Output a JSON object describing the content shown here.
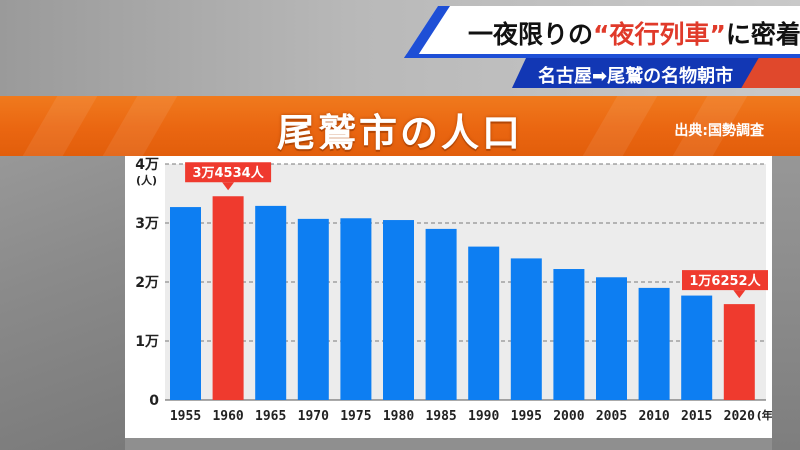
{
  "caption": {
    "headline_pre": "一夜限りの",
    "headline_highlight": "“夜行列車”",
    "headline_post": "に密着",
    "subline": "名古屋➡尾鷲の名物朝市"
  },
  "band": {
    "title": "尾鷲市の人口",
    "source": "出典:国勢調査"
  },
  "colors": {
    "bar": "#0d7ef2",
    "bar_highlight": "#ef3a2e",
    "band": "#ea6611",
    "caption_blue": "#1e4fd6"
  },
  "chart_data": {
    "type": "bar",
    "title": "尾鷲市の人口",
    "source": "出典:国勢調査",
    "ylabel": "(人)",
    "xlabel": "(年)",
    "ylim": [
      0,
      40000
    ],
    "y_ticks": [
      {
        "value": 0,
        "label": "0"
      },
      {
        "value": 10000,
        "label": "1万"
      },
      {
        "value": 20000,
        "label": "2万"
      },
      {
        "value": 30000,
        "label": "3万"
      },
      {
        "value": 40000,
        "label": "4万"
      }
    ],
    "grid": true,
    "categories": [
      "1955",
      "1960",
      "1965",
      "1970",
      "1975",
      "1980",
      "1985",
      "1990",
      "1995",
      "2000",
      "2005",
      "2010",
      "2015",
      "2020"
    ],
    "values": [
      32700,
      34534,
      32900,
      30700,
      30800,
      30500,
      29000,
      26000,
      24000,
      22200,
      20800,
      19000,
      17700,
      16252
    ],
    "highlight": [
      1,
      13
    ],
    "annotations": [
      {
        "index": 1,
        "text": "3万4534人"
      },
      {
        "index": 13,
        "text": "1万6252人"
      }
    ]
  }
}
